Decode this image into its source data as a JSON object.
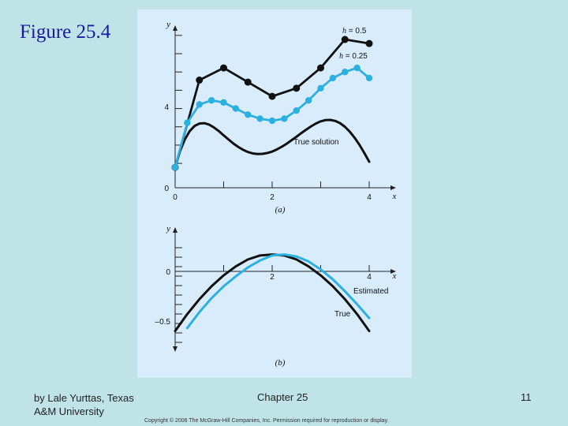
{
  "slide": {
    "title": "Figure 25.4",
    "author_line1": "by Lale Yurttas, Texas",
    "author_line2": "A&M University",
    "chapter": "Chapter 25",
    "page_number": "11",
    "copyright": "Copyright © 2006 The McGraw-Hill Companies, Inc. Permission required for reproduction or display."
  },
  "colors": {
    "h05": "#111111",
    "h025": "#2bb0e0",
    "true": "#111111",
    "estimated": "#2bb0e0",
    "panel": "#d9ecfb",
    "background": "#bfe3e6"
  },
  "chart_data": [
    {
      "type": "line",
      "panel_label": "(a)",
      "xlabel": "x",
      "ylabel": "y",
      "xlim": [
        0,
        4
      ],
      "ylim": [
        0,
        8
      ],
      "x_ticks": [
        0,
        2,
        4
      ],
      "y_ticks": [
        0,
        4
      ],
      "series": [
        {
          "name": "True solution",
          "label": "True solution",
          "markers": false,
          "x": [
            0,
            0.1,
            0.2,
            0.3,
            0.4,
            0.5,
            0.6,
            0.7,
            0.8,
            0.9,
            1.0,
            1.1,
            1.2,
            1.3,
            1.4,
            1.5,
            1.6,
            1.7,
            1.8,
            1.9,
            2.0,
            2.1,
            2.2,
            2.3,
            2.4,
            2.5,
            2.6,
            2.7,
            2.8,
            2.9,
            3.0,
            3.1,
            3.2,
            3.3,
            3.4,
            3.5,
            3.6,
            3.7,
            3.8,
            3.9,
            4.0
          ],
          "values": [
            1.0,
            1.8,
            2.38,
            2.79,
            3.04,
            3.16,
            3.18,
            3.11,
            2.97,
            2.79,
            2.58,
            2.38,
            2.18,
            2.01,
            1.87,
            1.76,
            1.69,
            1.66,
            1.67,
            1.71,
            1.78,
            1.89,
            2.02,
            2.17,
            2.34,
            2.51,
            2.69,
            2.86,
            3.02,
            3.16,
            3.27,
            3.33,
            3.34,
            3.29,
            3.18,
            3.0,
            2.76,
            2.46,
            2.11,
            1.71,
            1.28
          ]
        },
        {
          "name": "h = 0.5",
          "label_symbol": "h",
          "label_value": " = 0.5",
          "markers": true,
          "x": [
            0,
            0.5,
            1.0,
            1.5,
            2.0,
            2.5,
            3.0,
            3.5,
            4.0
          ],
          "values": [
            1.0,
            5.3,
            5.9,
            5.2,
            4.5,
            4.9,
            5.9,
            7.3,
            7.1
          ]
        },
        {
          "name": "h = 0.25",
          "label_symbol": "h",
          "label_value": " = 0.25",
          "markers": true,
          "x": [
            0,
            0.25,
            0.5,
            0.75,
            1.0,
            1.25,
            1.5,
            1.75,
            2.0,
            2.25,
            2.5,
            2.75,
            3.0,
            3.25,
            3.5,
            3.75,
            4.0
          ],
          "values": [
            1.0,
            3.2,
            4.1,
            4.3,
            4.2,
            3.9,
            3.6,
            3.4,
            3.3,
            3.4,
            3.8,
            4.3,
            4.9,
            5.4,
            5.7,
            5.9,
            5.4
          ]
        }
      ]
    },
    {
      "type": "line",
      "panel_label": "(b)",
      "xlabel": "x",
      "ylabel": "y",
      "xlim": [
        0,
        4
      ],
      "ylim": [
        -0.8,
        0.35
      ],
      "x_ticks": [
        2,
        4
      ],
      "y_ticks": [
        0,
        -0.5
      ],
      "y_tick_labels": [
        "0",
        "–0.5"
      ],
      "series": [
        {
          "name": "True",
          "label": "True",
          "markers": false,
          "x": [
            0,
            0.25,
            0.5,
            0.75,
            1.0,
            1.25,
            1.5,
            1.75,
            2.0,
            2.25,
            2.5,
            2.75,
            3.0,
            3.25,
            3.5,
            3.75,
            4.0
          ],
          "values": [
            -0.6,
            -0.43,
            -0.28,
            -0.15,
            -0.04,
            0.05,
            0.12,
            0.16,
            0.17,
            0.16,
            0.12,
            0.05,
            -0.04,
            -0.15,
            -0.28,
            -0.43,
            -0.6
          ]
        },
        {
          "name": "Estimated",
          "label": "Estimated",
          "markers": false,
          "x": [
            0.25,
            0.5,
            0.75,
            1.0,
            1.25,
            1.5,
            1.75,
            2.0,
            2.25,
            2.5,
            2.75,
            3.0,
            3.25,
            3.5,
            3.75,
            4.0
          ],
          "values": [
            -0.57,
            -0.41,
            -0.27,
            -0.15,
            -0.05,
            0.04,
            0.11,
            0.16,
            0.17,
            0.15,
            0.1,
            0.02,
            -0.08,
            -0.2,
            -0.33,
            -0.47
          ]
        }
      ]
    }
  ]
}
